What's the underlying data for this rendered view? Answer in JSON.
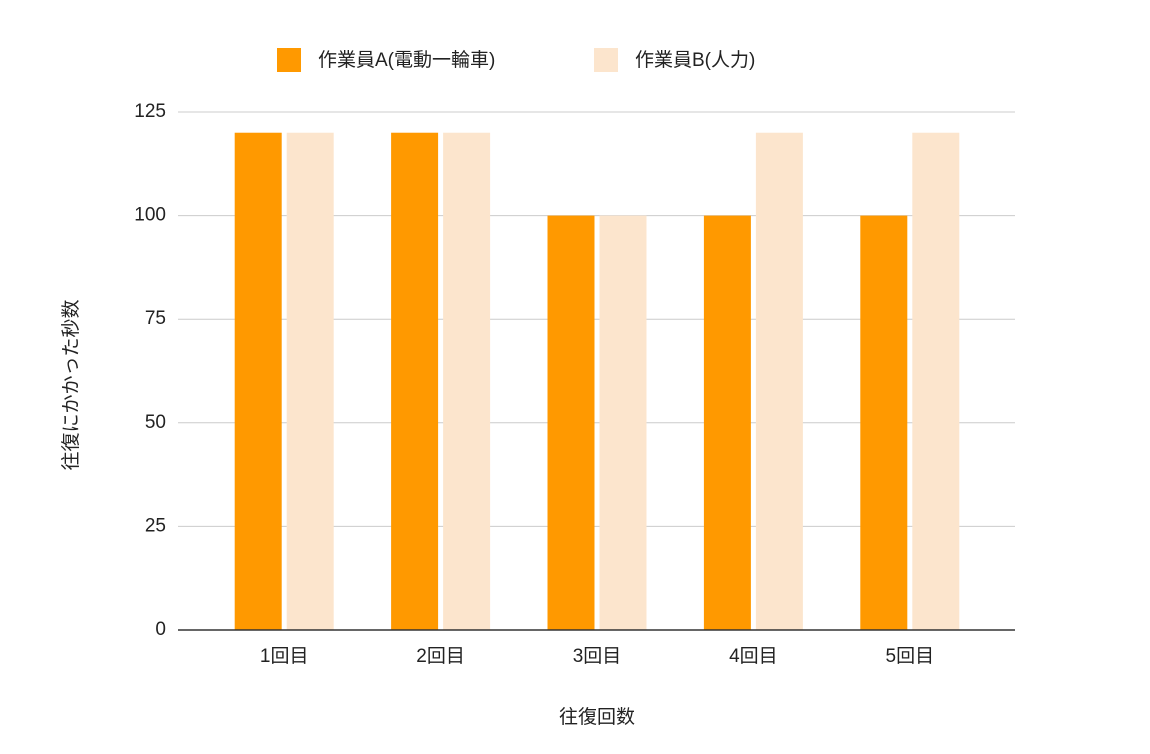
{
  "chart_data": {
    "type": "bar",
    "x_label": "往復回数",
    "y_label": "往復にかかった秒数",
    "categories": [
      "1回目",
      "2回目",
      "3回目",
      "4回目",
      "5回目"
    ],
    "series": [
      {
        "name": "作業員A(電動一輪車)",
        "color": "#ff9900",
        "values": [
          120,
          120,
          100,
          100,
          100
        ]
      },
      {
        "name": "作業員B(人力)",
        "color": "#fce5cd",
        "values": [
          120,
          120,
          100,
          120,
          120
        ]
      }
    ],
    "ylim": [
      0,
      125
    ],
    "yticks": [
      0,
      25,
      50,
      75,
      100,
      125
    ],
    "grid": true,
    "legend": "top"
  }
}
